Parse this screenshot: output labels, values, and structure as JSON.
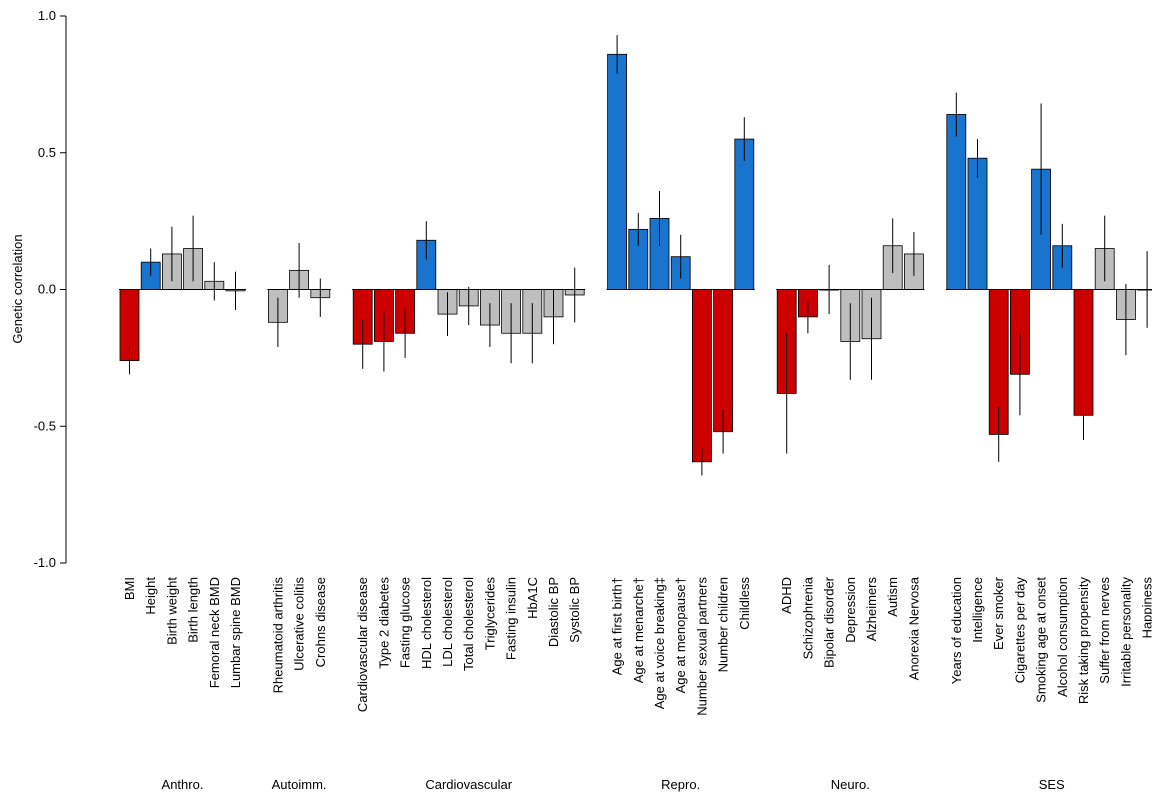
{
  "chart_data": {
    "type": "bar",
    "title": "",
    "xlabel": "",
    "ylabel": "Genetic correlation",
    "ylim": [
      -1.0,
      1.0
    ],
    "yticks": [
      "1.0",
      "0.5",
      "0.0",
      "-0.5",
      "-1.0"
    ],
    "ytick_values": [
      1.0,
      0.5,
      0.0,
      -0.5,
      -1.0
    ],
    "grid": false,
    "colors": {
      "positive": "#1874CD",
      "negative": "#CD0000",
      "null": "#BEBEBE"
    },
    "groups": [
      {
        "name": "Anthro.",
        "items": [
          {
            "label": "BMI",
            "value": -0.26,
            "err": 0.05,
            "color": "negative"
          },
          {
            "label": "Height",
            "value": 0.1,
            "err": 0.05,
            "color": "positive"
          },
          {
            "label": "Birth weight",
            "value": 0.13,
            "err": 0.1,
            "color": "null"
          },
          {
            "label": "Birth length",
            "value": 0.15,
            "err": 0.12,
            "color": "null"
          },
          {
            "label": "Femoral neck BMD",
            "value": 0.03,
            "err": 0.07,
            "color": "null"
          },
          {
            "label": "Lumbar spine BMD",
            "value": -0.005,
            "err": 0.07,
            "color": "null"
          }
        ]
      },
      {
        "name": "Autoimm.",
        "items": [
          {
            "label": "Rheumatoid arthritis",
            "value": -0.12,
            "err": 0.09,
            "color": "null"
          },
          {
            "label": "Ulcerative colitis",
            "value": 0.07,
            "err": 0.1,
            "color": "null"
          },
          {
            "label": "Crohns disease",
            "value": -0.03,
            "err": 0.07,
            "color": "null"
          }
        ]
      },
      {
        "name": "Cardiovascular",
        "items": [
          {
            "label": "Cardiovascular disease",
            "value": -0.2,
            "err": 0.09,
            "color": "negative"
          },
          {
            "label": "Type 2 diabetes",
            "value": -0.19,
            "err": 0.11,
            "color": "negative"
          },
          {
            "label": "Fasting glucose",
            "value": -0.16,
            "err": 0.09,
            "color": "negative"
          },
          {
            "label": "HDL cholesterol",
            "value": 0.18,
            "err": 0.07,
            "color": "positive"
          },
          {
            "label": "LDL cholesterol",
            "value": -0.09,
            "err": 0.08,
            "color": "null"
          },
          {
            "label": "Total cholesterol",
            "value": -0.06,
            "err": 0.07,
            "color": "null"
          },
          {
            "label": "Triglycerides",
            "value": -0.13,
            "err": 0.08,
            "color": "null"
          },
          {
            "label": "Fasting insulin",
            "value": -0.16,
            "err": 0.11,
            "color": "null"
          },
          {
            "label": "HbA1C",
            "value": -0.16,
            "err": 0.11,
            "color": "null"
          },
          {
            "label": "Diastolic BP",
            "value": -0.1,
            "err": 0.1,
            "color": "null"
          },
          {
            "label": "Systolic BP",
            "value": -0.02,
            "err": 0.1,
            "color": "null"
          }
        ]
      },
      {
        "name": "Repro.",
        "items": [
          {
            "label": "Age at first birth†",
            "value": 0.86,
            "err": 0.07,
            "color": "positive"
          },
          {
            "label": "Age at menarche†",
            "value": 0.22,
            "err": 0.06,
            "color": "positive"
          },
          {
            "label": "Age at voice breaking‡",
            "value": 0.26,
            "err": 0.1,
            "color": "positive"
          },
          {
            "label": "Age at menopause†",
            "value": 0.12,
            "err": 0.08,
            "color": "positive"
          },
          {
            "label": "Number sexual partners",
            "value": -0.63,
            "err": 0.05,
            "color": "negative"
          },
          {
            "label": "Number children",
            "value": -0.52,
            "err": 0.08,
            "color": "negative"
          },
          {
            "label": "Childless",
            "value": 0.55,
            "err": 0.08,
            "color": "positive"
          }
        ]
      },
      {
        "name": "Neuro.",
        "items": [
          {
            "label": "ADHD",
            "value": -0.38,
            "err": 0.22,
            "color": "negative"
          },
          {
            "label": "Schizophrenia",
            "value": -0.1,
            "err": 0.06,
            "color": "negative"
          },
          {
            "label": "Bipolar disorder",
            "value": 0.0,
            "err": 0.09,
            "color": "null"
          },
          {
            "label": "Depression",
            "value": -0.19,
            "err": 0.14,
            "color": "null"
          },
          {
            "label": "Alzheimers",
            "value": -0.18,
            "err": 0.15,
            "color": "null"
          },
          {
            "label": "Autism",
            "value": 0.16,
            "err": 0.1,
            "color": "null"
          },
          {
            "label": "Anorexia Nervosa",
            "value": 0.13,
            "err": 0.08,
            "color": "null"
          }
        ]
      },
      {
        "name": "SES",
        "items": [
          {
            "label": "Years of education",
            "value": 0.64,
            "err": 0.08,
            "color": "positive"
          },
          {
            "label": "Intelligence",
            "value": 0.48,
            "err": 0.07,
            "color": "positive"
          },
          {
            "label": "Ever smoker",
            "value": -0.53,
            "err": 0.1,
            "color": "negative"
          },
          {
            "label": "Cigarettes per day",
            "value": -0.31,
            "err": 0.15,
            "color": "negative"
          },
          {
            "label": "Smoking age at onset",
            "value": 0.44,
            "err": 0.24,
            "color": "positive"
          },
          {
            "label": "Alcohol consumption",
            "value": 0.16,
            "err": 0.08,
            "color": "positive"
          },
          {
            "label": "Risk taking propensity",
            "value": -0.46,
            "err": 0.09,
            "color": "negative"
          },
          {
            "label": "Suffer from nerves",
            "value": 0.15,
            "err": 0.12,
            "color": "null"
          },
          {
            "label": "Irritable personality",
            "value": -0.11,
            "err": 0.13,
            "color": "null"
          },
          {
            "label": "Happiness",
            "value": 0.0,
            "err": 0.14,
            "color": "null"
          }
        ]
      }
    ]
  }
}
